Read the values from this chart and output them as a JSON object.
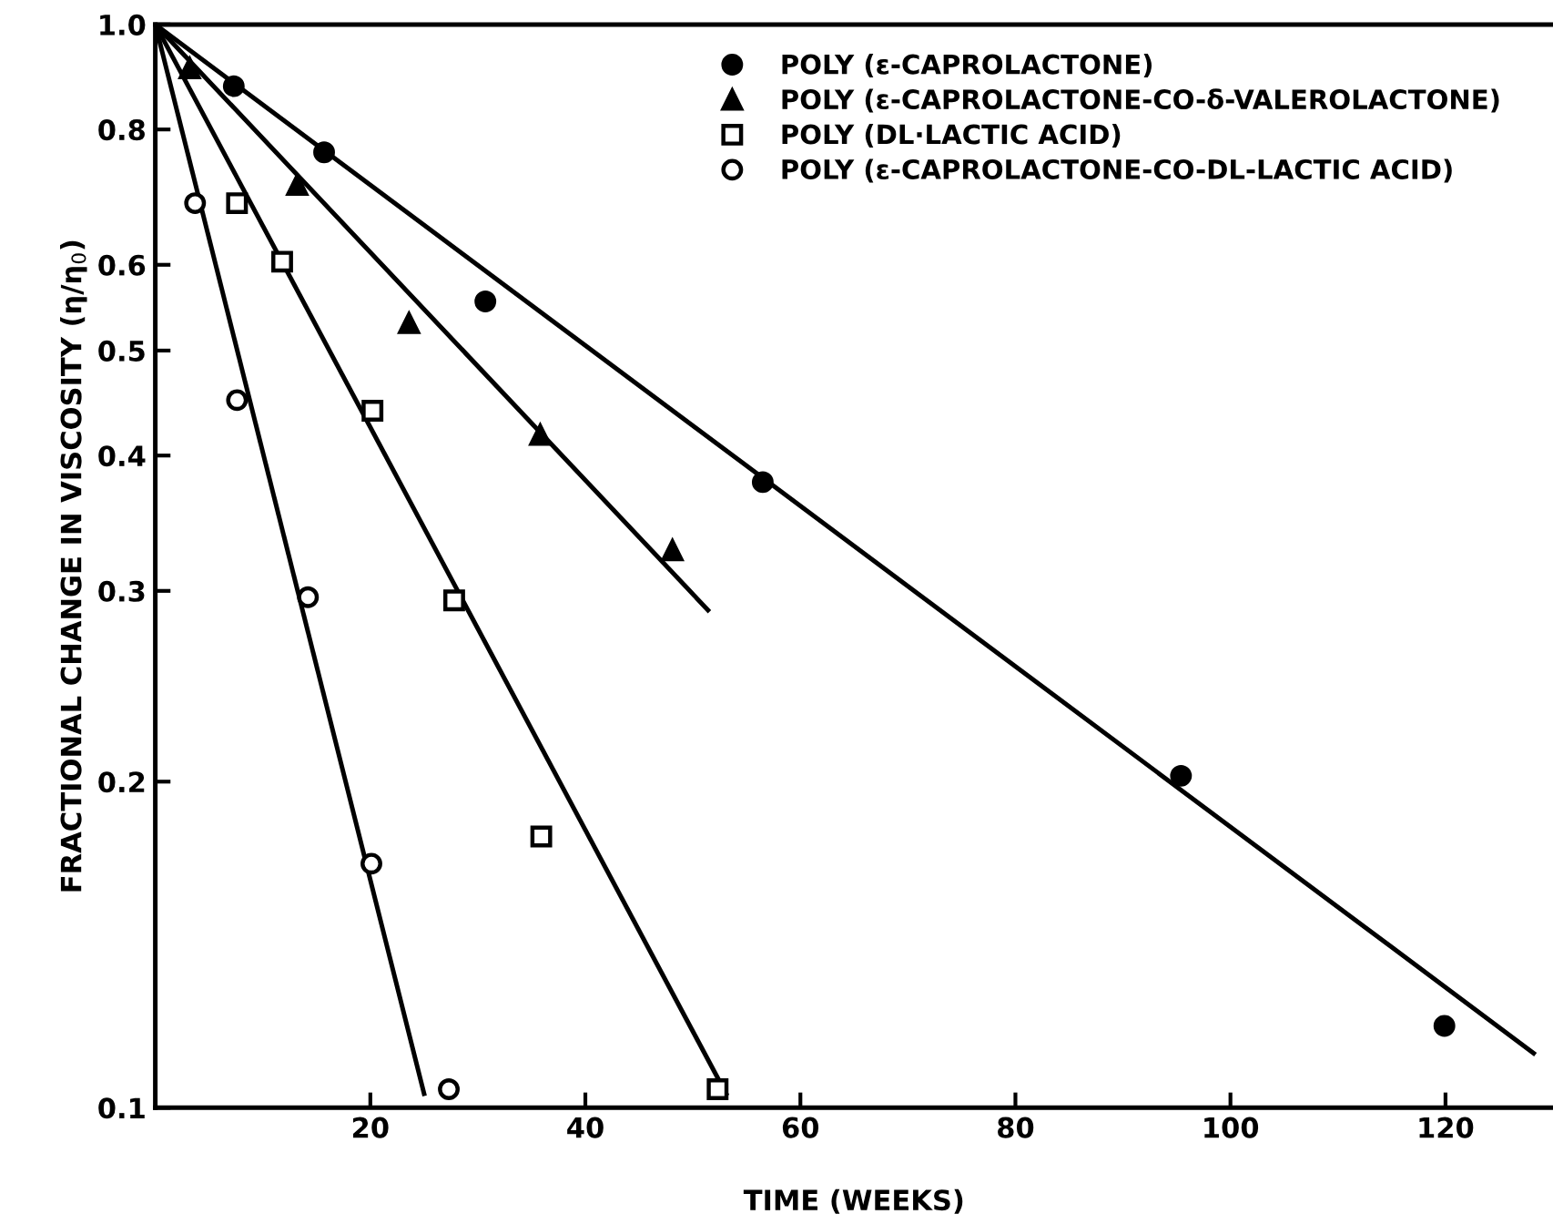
{
  "chart_data": {
    "type": "scatter",
    "xlabel": "TIME (WEEKS)",
    "ylabel": "FRACTIONAL CHANGE IN VISCOSITY (η/η$_{0}$)",
    "log": "y",
    "xlim": [
      0,
      130
    ],
    "xticks": [
      20,
      40,
      60,
      80,
      100,
      120
    ],
    "ylim": [
      0.1,
      1.0
    ],
    "yticks": [
      0.1,
      0.2,
      0.3,
      0.4,
      0.5,
      0.6,
      0.8,
      {
        "value": 1.0,
        "label": "1.0"
      }
    ],
    "grid": false,
    "legend": "top right",
    "series": [
      {
        "name": "POLY (ε-CAPROLACTONE)",
        "color": "#000000",
        "marker": "circle",
        "x": [
          7.3,
          15.7,
          30.7,
          56.5,
          95.4,
          119.9
        ],
        "values": [
          0.877,
          0.762,
          0.555,
          0.378,
          0.2025,
          0.119
        ]
      },
      {
        "name": "POLY (ε-CAPROLACTONE-CO-δ-VALEROLACTONE)",
        "color": "#000000",
        "marker": "triangle",
        "x": [
          3.2,
          13.2,
          23.6,
          35.8,
          48.1
        ],
        "values": [
          0.911,
          0.711,
          0.53,
          0.418,
          0.327
        ]
      },
      {
        "name": "POLY (DL·LACTIC ACID)",
        "color": "#ffffff",
        "marker": "square",
        "x": [
          7.6,
          11.8,
          20.2,
          27.8,
          35.9,
          52.3
        ],
        "values": [
          0.684,
          0.604,
          0.44,
          0.294,
          0.178,
          0.104
        ]
      },
      {
        "name": "POLY (ε-CAPROLACTONE-CO-DL-LACTIC ACID)",
        "color": "#ffffff",
        "marker": "circle",
        "x": [
          3.7,
          7.6,
          14.2,
          20.1,
          27.3
        ],
        "values": [
          0.684,
          0.45,
          0.296,
          0.168,
          0.104
        ]
      },
      {
        "type": "line",
        "color": "#000000",
        "marker": "none",
        "x": [
          0,
          128.2
        ],
        "values": [
          1.0,
          0.1123
        ]
      },
      {
        "type": "line",
        "color": "#000000",
        "marker": "none",
        "x": [
          0,
          51.4
        ],
        "values": [
          1.0,
          0.288
        ]
      },
      {
        "type": "line",
        "color": "#000000",
        "marker": "none",
        "x": [
          0,
          53.1
        ],
        "values": [
          1.0,
          0.103
        ]
      },
      {
        "type": "line",
        "color": "#000000",
        "marker": "none",
        "x": [
          0,
          25.0
        ],
        "values": [
          1.0,
          0.103
        ]
      }
    ]
  }
}
